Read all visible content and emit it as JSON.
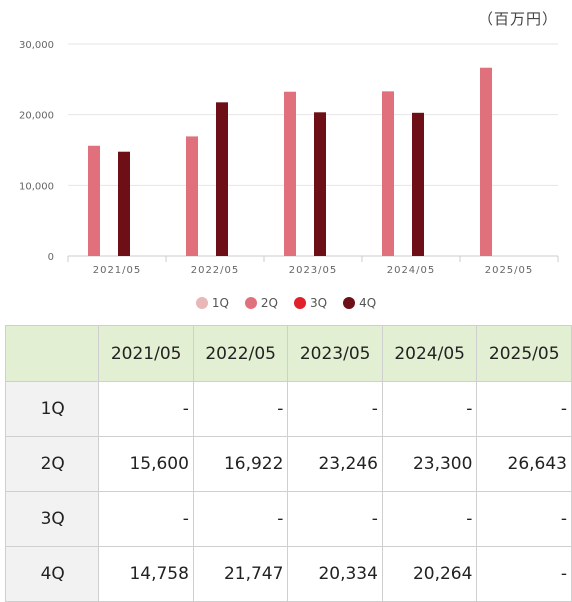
{
  "unit_label": "（百万円）",
  "chart_data": {
    "type": "bar",
    "categories": [
      "2021/05",
      "2022/05",
      "2023/05",
      "2024/05",
      "2025/05"
    ],
    "series": [
      {
        "name": "1Q",
        "color": "#e8b7b7",
        "values": [
          null,
          null,
          null,
          null,
          null
        ]
      },
      {
        "name": "2Q",
        "color": "#e0707c",
        "values": [
          15600,
          16922,
          23246,
          23300,
          26643
        ]
      },
      {
        "name": "3Q",
        "color": "#e0202a",
        "values": [
          null,
          null,
          null,
          null,
          null
        ]
      },
      {
        "name": "4Q",
        "color": "#6e0f18",
        "values": [
          14758,
          21747,
          20334,
          20264,
          null
        ]
      }
    ],
    "yticks": [
      "0",
      "10,000",
      "20,000",
      "30,000"
    ],
    "ylim": [
      0,
      30000
    ],
    "legend_position": "bottom",
    "grid": true
  },
  "table": {
    "headers": [
      "2021/05",
      "2022/05",
      "2023/05",
      "2024/05",
      "2025/05"
    ],
    "rows": [
      {
        "label": "1Q",
        "cells": [
          "-",
          "-",
          "-",
          "-",
          "-"
        ]
      },
      {
        "label": "2Q",
        "cells": [
          "15,600",
          "16,922",
          "23,246",
          "23,300",
          "26,643"
        ]
      },
      {
        "label": "3Q",
        "cells": [
          "-",
          "-",
          "-",
          "-",
          "-"
        ]
      },
      {
        "label": "4Q",
        "cells": [
          "14,758",
          "21,747",
          "20,334",
          "20,264",
          "-"
        ]
      }
    ]
  }
}
